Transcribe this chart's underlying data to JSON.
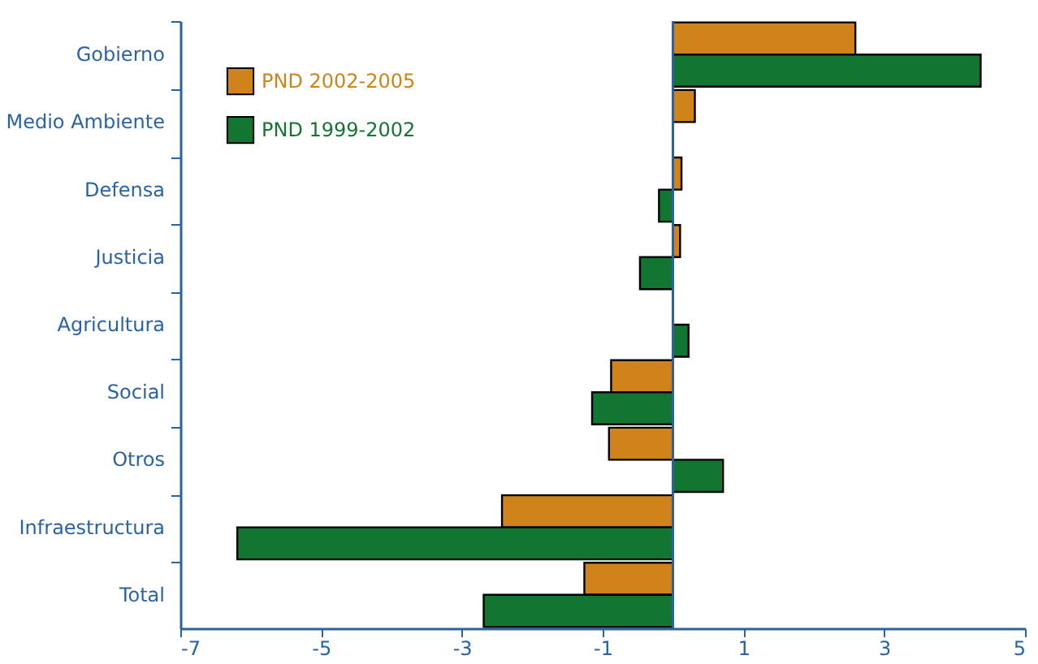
{
  "chart_data": {
    "type": "bar",
    "orientation": "horizontal",
    "categories": [
      "Gobierno",
      "Medio Ambiente",
      "Defensa",
      "Justicia",
      "Agricultura",
      "Social",
      "Otros",
      "Infraestructura",
      "Total"
    ],
    "series": [
      {
        "name": "PND 2002-2005",
        "color": "#cf831a",
        "values": [
          2.59,
          0.31,
          0.12,
          0.1,
          null,
          -0.88,
          -0.91,
          -2.43,
          -1.26
        ]
      },
      {
        "name": "PND 1999-2002",
        "color": "#137532",
        "values": [
          4.37,
          null,
          -0.2,
          -0.47,
          0.22,
          -1.15,
          0.71,
          -6.19,
          -2.69
        ]
      }
    ],
    "ref_lines": [
      {
        "axis": "x",
        "value": 0,
        "color": "#2a62a6"
      }
    ],
    "xlim": [
      -7,
      5
    ],
    "xticks": [
      -7,
      -5,
      -3,
      -1,
      1,
      3,
      5
    ],
    "grid": false,
    "legend": "top left"
  }
}
